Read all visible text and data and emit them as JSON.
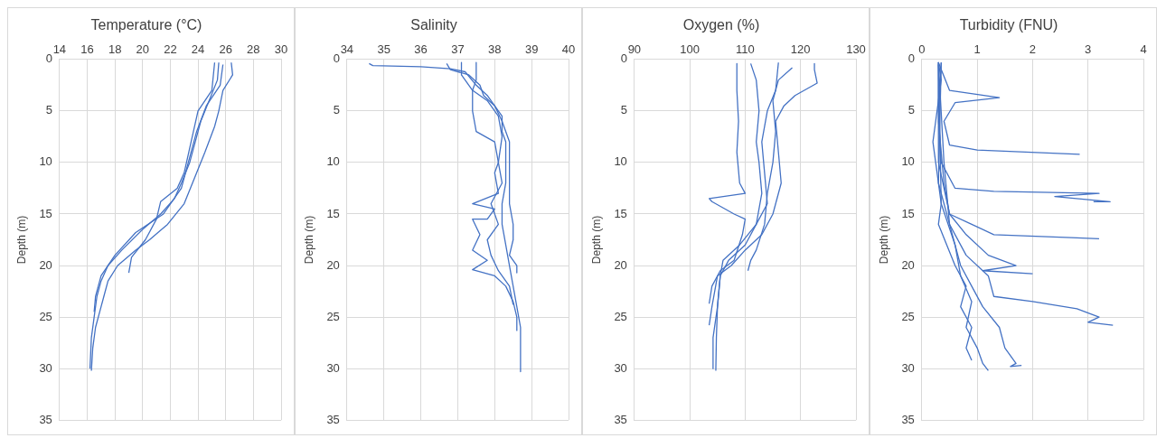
{
  "chart_data": [
    {
      "type": "line",
      "title": "Temperature (°C)",
      "ylabel": "Depth (m)",
      "xlim": [
        14,
        30
      ],
      "xticks": [
        14,
        16,
        18,
        20,
        22,
        24,
        26,
        28,
        30
      ],
      "ylim": [
        35,
        0
      ],
      "yticks": [
        0,
        5,
        10,
        15,
        20,
        25,
        30,
        35
      ],
      "grid": true,
      "marker": "none",
      "series": [
        {
          "color": "#4472c4",
          "x": [
            25.5,
            25.4,
            24.8,
            24.2,
            23.8,
            23.4,
            22.8,
            22.3,
            21.3,
            20,
            18.5,
            17.5,
            17,
            16.7,
            16.5,
            16.3,
            16.2
          ],
          "values": [
            0.3,
            2,
            4,
            6,
            8,
            10,
            12,
            13.5,
            15,
            16.5,
            18.5,
            20,
            21.5,
            23,
            25,
            27,
            30
          ]
        },
        {
          "color": "#4472c4",
          "x": [
            26.4,
            26.5,
            25.8,
            25.5,
            25.2,
            24.5,
            23.6,
            23,
            21.8,
            20.5,
            19.5,
            18.2,
            17.5,
            17.2,
            16.9,
            16.6,
            16.4,
            16.3
          ],
          "values": [
            0.3,
            1.5,
            3,
            5,
            6.5,
            9,
            12,
            14,
            16,
            17.5,
            18.5,
            20,
            21.5,
            23,
            24.5,
            26,
            28,
            30.2
          ]
        },
        {
          "color": "#4472c4",
          "x": [
            25.2,
            25,
            24,
            23.5,
            23,
            22.5,
            21.3,
            21,
            20.2,
            19.2,
            19
          ],
          "values": [
            0.3,
            3,
            5,
            8,
            11,
            12.5,
            13.8,
            15.5,
            17.5,
            19.2,
            20.7
          ]
        },
        {
          "color": "#4472c4",
          "x": [
            25.8,
            25.6,
            24.6,
            23.9,
            23.3,
            22.8,
            21.5,
            19.5,
            18,
            17,
            16.6,
            16.5
          ],
          "values": [
            0.5,
            2.5,
            4.5,
            7,
            10,
            12.5,
            15,
            16.8,
            19,
            21,
            23,
            24.5
          ]
        }
      ]
    },
    {
      "type": "line",
      "title": "Salinity",
      "ylabel": "Depth (m)",
      "xlim": [
        34,
        40
      ],
      "xticks": [
        34,
        35,
        36,
        37,
        38,
        39,
        40
      ],
      "ylim": [
        35,
        0
      ],
      "yticks": [
        0,
        5,
        10,
        15,
        20,
        25,
        30,
        35
      ],
      "grid": true,
      "marker": "none",
      "series": [
        {
          "color": "#4472c4",
          "x": [
            34.6,
            34.7,
            36,
            36.8,
            37.2,
            37.5,
            37.8,
            38,
            38.2,
            38.2,
            38.3,
            38.3,
            38.2,
            38.2,
            38.3,
            38.4,
            38.5,
            38.6,
            38.7,
            38.7
          ],
          "values": [
            0.4,
            0.6,
            0.7,
            0.9,
            1.2,
            2.5,
            3.5,
            4.5,
            5.5,
            7,
            8,
            12,
            14,
            16,
            18,
            20,
            22,
            24,
            26,
            30.3
          ]
        },
        {
          "color": "#4472c4",
          "x": [
            37.5,
            37.5,
            37.4,
            37.4,
            37.5,
            38,
            38.1,
            38,
            38.1,
            37.4,
            38,
            37.8,
            37.4,
            37.6,
            37.4,
            37.8,
            37.4,
            38,
            38.3,
            38.5,
            38.6,
            38.6
          ],
          "values": [
            0.3,
            2,
            3,
            5,
            7,
            8,
            10,
            11,
            13,
            14,
            14.5,
            15.5,
            15.5,
            17,
            18.5,
            19.5,
            20.4,
            21,
            22,
            23.5,
            25,
            26.3
          ]
        },
        {
          "color": "#4472c4",
          "x": [
            36.7,
            36.8,
            37.3,
            37.6,
            37.7,
            38,
            38.2,
            38.4,
            38.4,
            38.5,
            38.5,
            38.4,
            38.6,
            38.6
          ],
          "values": [
            0.4,
            1,
            1.5,
            2.5,
            3.5,
            4.5,
            6,
            8,
            14,
            16,
            17.5,
            19,
            20,
            20.7
          ]
        },
        {
          "color": "#4472c4",
          "x": [
            37.1,
            37.1,
            37.4,
            37.8,
            38.1,
            38.2,
            38.1,
            38.2,
            37.9,
            38.1,
            37.8,
            37.9,
            38.1,
            38.4,
            38.5
          ],
          "values": [
            0.3,
            1.5,
            3,
            4,
            5.5,
            7.5,
            10,
            12,
            14,
            16,
            17.5,
            19,
            20.5,
            22,
            23.8
          ]
        }
      ]
    },
    {
      "type": "line",
      "title": "Oxygen (%)",
      "ylabel": "Depth (m)",
      "xlim": [
        90,
        130
      ],
      "xticks": [
        90,
        100,
        110,
        120,
        130
      ],
      "ylim": [
        35,
        0
      ],
      "yticks": [
        0,
        5,
        10,
        15,
        20,
        25,
        30,
        35
      ],
      "grid": true,
      "marker": "none",
      "series": [
        {
          "color": "#4472c4",
          "x": [
            108.5,
            108.5,
            108.8,
            108.5,
            109,
            110,
            103.5,
            104,
            108,
            110,
            109.5,
            108,
            105.5,
            104,
            103.5
          ],
          "values": [
            0.4,
            3,
            6,
            9,
            12,
            13,
            13.5,
            13.8,
            15,
            15.5,
            17,
            19.5,
            20.5,
            22,
            23.7
          ]
        },
        {
          "color": "#4472c4",
          "x": [
            116,
            115.5,
            114,
            113,
            113.5,
            114,
            112,
            110,
            107,
            105.5,
            105,
            104.8,
            104.7
          ],
          "values": [
            0.3,
            3,
            5,
            8,
            11,
            14,
            16,
            18,
            19.5,
            21,
            24,
            27,
            30.2
          ]
        },
        {
          "color": "#4472c4",
          "x": [
            122.5,
            122.5,
            123,
            119,
            117,
            115.5,
            116,
            116.5,
            115,
            113,
            110,
            107.5,
            105,
            104,
            103.5
          ],
          "values": [
            0.4,
            1,
            2.3,
            3.5,
            4.5,
            6,
            9,
            12,
            15,
            17,
            18.5,
            20,
            21,
            24,
            25.8
          ]
        },
        {
          "color": "#4472c4",
          "x": [
            111,
            112,
            112.5,
            112,
            112.5,
            113,
            112,
            109,
            106,
            105.5,
            105,
            104.2,
            104.2
          ],
          "values": [
            0.4,
            2,
            5,
            8,
            10,
            13,
            16,
            18,
            19.5,
            21,
            24,
            27,
            30
          ]
        },
        {
          "color": "#4472c4",
          "x": [
            118.5,
            116,
            115,
            115.5,
            115,
            114,
            113.5,
            112,
            111,
            110.5
          ],
          "values": [
            0.8,
            2,
            4,
            7,
            10,
            13,
            16,
            18.5,
            19.5,
            20.5
          ]
        }
      ]
    },
    {
      "type": "line",
      "title": "Turbidity (FNU)",
      "ylabel": "Depth (m)",
      "xlim": [
        0,
        4
      ],
      "xticks": [
        0,
        1,
        2,
        3,
        4
      ],
      "ylim": [
        35,
        0
      ],
      "yticks": [
        0,
        5,
        10,
        15,
        20,
        25,
        30,
        35
      ],
      "grid": true,
      "marker": "none",
      "series": [
        {
          "color": "#4472c4",
          "x": [
            0.3,
            0.35,
            0.3,
            0.25,
            0.2,
            0.25,
            0.3,
            0.35,
            0.3,
            0.45,
            0.6,
            0.8,
            0.7,
            0.9,
            0.8,
            0.9
          ],
          "values": [
            0.3,
            2,
            4,
            6,
            8,
            10,
            12,
            14,
            16,
            18,
            20,
            22,
            24,
            26,
            28,
            29.2
          ]
        },
        {
          "color": "#4472c4",
          "x": [
            0.3,
            0.5,
            1.4,
            0.6,
            0.4,
            0.5,
            1,
            2.85
          ],
          "values": [
            0.3,
            3,
            3.7,
            4.2,
            6,
            8.3,
            8.8,
            9.2
          ]
        },
        {
          "color": "#4472c4",
          "x": [
            0.3,
            0.3,
            0.35,
            0.6,
            1.3,
            3.2,
            2.4,
            3.4,
            3.1
          ],
          "values": [
            0.5,
            5,
            10,
            12.5,
            12.8,
            13,
            13.3,
            13.8,
            13.8
          ]
        },
        {
          "color": "#4472c4",
          "x": [
            0.35,
            0.3,
            0.4,
            0.5,
            0.9,
            1.3,
            2.7,
            3.2
          ],
          "values": [
            0.3,
            6,
            12,
            15,
            16,
            17,
            17.3,
            17.4
          ]
        },
        {
          "color": "#4472c4",
          "x": [
            0.3,
            0.3,
            0.5,
            0.8,
            1.2,
            1.7,
            1.1,
            2
          ],
          "values": [
            0.3,
            10,
            15,
            17,
            19,
            20,
            20.5,
            20.8
          ]
        },
        {
          "color": "#4472c4",
          "x": [
            0.35,
            0.3,
            0.5,
            0.8,
            1.2,
            1.3,
            2,
            2.8,
            3.2,
            3,
            3.45
          ],
          "values": [
            0.3,
            12,
            16,
            19,
            21,
            23,
            23.5,
            24.2,
            25,
            25.5,
            25.8
          ]
        },
        {
          "color": "#4472c4",
          "x": [
            0.3,
            0.4,
            0.5,
            0.7,
            0.9,
            1.1,
            1.4,
            1.5,
            1.7,
            1.6,
            1.8
          ],
          "values": [
            0.3,
            10,
            16,
            20,
            22,
            24,
            26,
            28,
            29.5,
            29.8,
            29.7
          ]
        },
        {
          "color": "#4472c4",
          "x": [
            0.3,
            0.35,
            0.6,
            0.7,
            0.9,
            0.8,
            1,
            1.1,
            1.2
          ],
          "values": [
            0.5,
            14,
            18,
            21,
            23.5,
            26,
            28,
            29.5,
            30.2
          ]
        }
      ]
    }
  ]
}
